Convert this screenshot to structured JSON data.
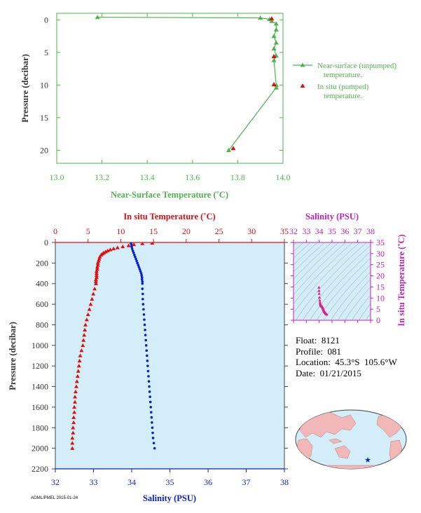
{
  "colors": {
    "green": "#4fb34f",
    "red": "#e01010",
    "blue": "#0a1fd0",
    "magenta": "#c020c0",
    "panel_bg": "#d3eef8",
    "axis_text": "#333333",
    "land": "#f2b8b8",
    "ocean": "#d3eef8",
    "float_marker": "#0a1fd0"
  },
  "info": {
    "float": "Float:  8121",
    "profile": "Profile:  081",
    "location": "Location:  45.3°S  105.6°W",
    "date": "Date:  01/21/2015"
  },
  "footer_id": "AOML/PMEL 2015-01-24",
  "chart_data": [
    {
      "type": "line",
      "xlabel": "Near-Surface Temperature (˚C)",
      "ylabel": "Pressure (decibar)",
      "xlim": [
        13.0,
        14.0
      ],
      "ylim": [
        22,
        -1
      ],
      "xticks": [
        "13.0",
        "13.2",
        "13.4",
        "13.6",
        "13.8",
        "14.0"
      ],
      "xtick_values": [
        13.0,
        13.2,
        13.4,
        13.6,
        13.8,
        14.0
      ],
      "yticks": [
        "0",
        "5",
        "10",
        "15",
        "20"
      ],
      "ytick_values": [
        0,
        5,
        10,
        15,
        20
      ],
      "legend_position": "right",
      "series": [
        {
          "name": "Near-surface (unpumped) temperature.",
          "marker": "triangle",
          "line": true,
          "x": [
            13.18,
            13.9,
            13.94,
            13.95,
            13.97,
            13.97,
            13.96,
            13.97,
            13.96,
            13.97,
            13.96,
            13.97,
            13.97,
            13.76
          ],
          "y": [
            -0.4,
            -0.3,
            -0.1,
            0.2,
            0.6,
            1.5,
            2.5,
            3.5,
            4.4,
            5.5,
            6.2,
            10.0,
            10.4,
            20.0
          ]
        },
        {
          "name": "In situ (pumped) temperature.",
          "marker": "triangle",
          "line": false,
          "x": [
            13.95,
            13.96,
            13.96,
            13.78
          ],
          "y": [
            -0.2,
            5.6,
            9.9,
            19.7
          ]
        }
      ]
    },
    {
      "type": "line",
      "ylabel": "Pressure (decibar)",
      "top_axis": {
        "label": "In situ Temperature (˚C)",
        "ticks": [
          "0",
          "5",
          "10",
          "15",
          "20",
          "25",
          "30",
          "35"
        ],
        "tick_values": [
          0,
          5,
          10,
          15,
          20,
          25,
          30,
          35
        ],
        "lim": [
          0,
          35
        ]
      },
      "bottom_axis": {
        "label": "Salinity (PSU)",
        "ticks": [
          "32",
          "33",
          "34",
          "35",
          "36",
          "37",
          "38"
        ],
        "tick_values": [
          32,
          33,
          34,
          35,
          36,
          37,
          38
        ],
        "lim": [
          32,
          38
        ]
      },
      "yticks": [
        "0",
        "200",
        "400",
        "600",
        "800",
        "1000",
        "1200",
        "1400",
        "1600",
        "1800",
        "2000",
        "2200"
      ],
      "ytick_values": [
        0,
        200,
        400,
        600,
        800,
        1000,
        1200,
        1400,
        1600,
        1800,
        2000,
        2200
      ],
      "ylim": [
        0,
        2200
      ],
      "temperature_profile": {
        "pressure": [
          5,
          10,
          20,
          30,
          40,
          50,
          60,
          70,
          80,
          90,
          100,
          110,
          120,
          140,
          160,
          180,
          200,
          220,
          240,
          260,
          280,
          300,
          320,
          340,
          360,
          380,
          400,
          450,
          500,
          550,
          600,
          650,
          700,
          750,
          800,
          850,
          900,
          950,
          1000,
          1050,
          1100,
          1150,
          1200,
          1250,
          1300,
          1350,
          1400,
          1450,
          1500,
          1550,
          1600,
          1650,
          1700,
          1750,
          1800,
          1850,
          1900,
          1950,
          2000
        ],
        "temperature": [
          14.8,
          13.3,
          12.0,
          11.2,
          10.3,
          9.5,
          8.9,
          8.4,
          8.0,
          7.7,
          7.4,
          7.2,
          7.0,
          6.8,
          6.7,
          6.6,
          6.5,
          6.5,
          6.4,
          6.4,
          6.3,
          6.3,
          6.3,
          6.3,
          6.2,
          6.2,
          6.2,
          6.0,
          5.8,
          5.6,
          5.4,
          5.2,
          5.0,
          4.8,
          4.6,
          4.5,
          4.4,
          4.3,
          4.2,
          4.0,
          3.8,
          3.7,
          3.6,
          3.5,
          3.4,
          3.3,
          3.2,
          3.1,
          3.0,
          3.0,
          2.9,
          2.9,
          2.8,
          2.8,
          2.7,
          2.7,
          2.6,
          2.6,
          2.6
        ]
      },
      "salinity_profile": {
        "pressure": [
          5,
          20,
          40,
          60,
          80,
          100,
          120,
          140,
          160,
          180,
          200,
          220,
          240,
          260,
          280,
          300,
          320,
          340,
          360,
          380,
          400,
          450,
          500,
          550,
          600,
          650,
          700,
          750,
          800,
          850,
          900,
          950,
          1000,
          1050,
          1100,
          1150,
          1200,
          1250,
          1300,
          1350,
          1400,
          1450,
          1500,
          1550,
          1600,
          1650,
          1700,
          1750,
          1800,
          1850,
          1900,
          1950,
          2000
        ],
        "salinity": [
          33.98,
          33.99,
          34.0,
          34.01,
          34.03,
          34.05,
          34.07,
          34.09,
          34.11,
          34.13,
          34.15,
          34.17,
          34.19,
          34.21,
          34.23,
          34.25,
          34.26,
          34.27,
          34.27,
          34.28,
          34.28,
          34.28,
          34.29,
          34.29,
          34.3,
          34.31,
          34.32,
          34.33,
          34.34,
          34.35,
          34.36,
          34.37,
          34.38,
          34.39,
          34.4,
          34.41,
          34.42,
          34.43,
          34.44,
          34.45,
          34.46,
          34.47,
          34.48,
          34.49,
          34.5,
          34.51,
          34.52,
          34.53,
          34.54,
          34.55,
          34.56,
          34.58,
          34.6
        ]
      }
    },
    {
      "type": "scatter",
      "title": "Salinity (PSU)",
      "ylabel": "In situ Temperature (˚C)",
      "xticks": [
        "32",
        "33",
        "34",
        "35",
        "36",
        "37",
        "38"
      ],
      "xtick_values": [
        32,
        33,
        34,
        35,
        36,
        37,
        38
      ],
      "xlim": [
        32,
        38
      ],
      "yticks": [
        "0",
        "5",
        "10",
        "15",
        "20",
        "25",
        "30",
        "35"
      ],
      "ytick_values": [
        0,
        5,
        10,
        15,
        20,
        25,
        30,
        35
      ],
      "ylim": [
        0,
        35
      ],
      "points": {
        "salinity": [
          33.98,
          33.99,
          34.0,
          34.02,
          34.04,
          34.06,
          34.08,
          34.1,
          34.13,
          34.15,
          34.18,
          34.2,
          34.22,
          34.25,
          34.27,
          34.28,
          34.3,
          34.32,
          34.34,
          34.36,
          34.38,
          34.4,
          34.42,
          34.44,
          34.46,
          34.48,
          34.5,
          34.52,
          34.54,
          34.56,
          34.58,
          34.6
        ],
        "temperature": [
          14.8,
          13.3,
          12.0,
          10.3,
          9.0,
          8.0,
          7.4,
          7.0,
          6.7,
          6.5,
          6.4,
          6.3,
          6.2,
          6.0,
          5.8,
          5.5,
          5.2,
          4.9,
          4.6,
          4.4,
          4.2,
          4.0,
          3.8,
          3.6,
          3.4,
          3.3,
          3.1,
          3.0,
          2.9,
          2.8,
          2.7,
          2.6
        ]
      }
    }
  ]
}
